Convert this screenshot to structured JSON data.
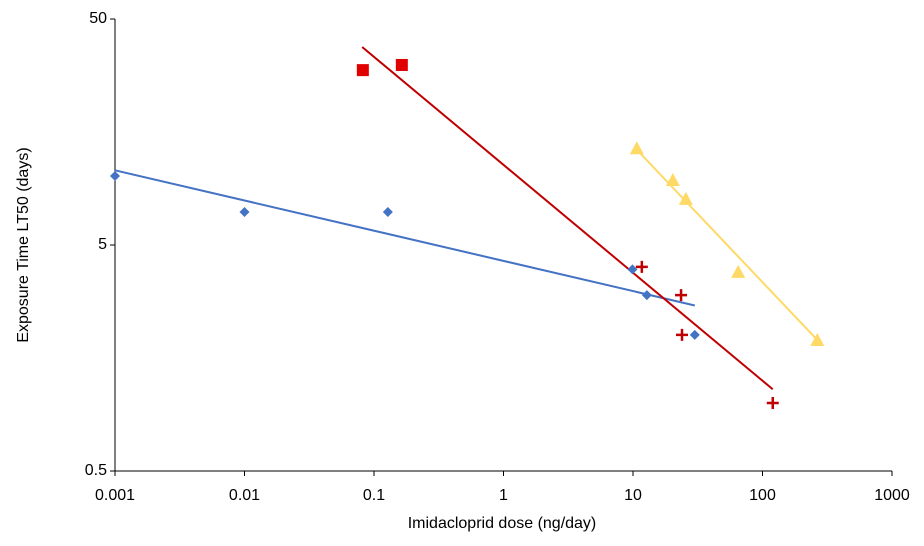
{
  "chart_data": {
    "type": "scatter",
    "x_label": "Imidacloprid dose (ng/day)",
    "y_label": "Exposure Time LT50 (days)",
    "xscale": "log",
    "yscale": "log",
    "xlim": [
      0.001,
      1000
    ],
    "xticks": [
      0.001,
      0.01,
      0.1,
      1,
      10,
      100,
      1000
    ],
    "ylim": [
      0.5,
      50
    ],
    "yticks": [
      0.5,
      5,
      50
    ],
    "grid": false,
    "series": [
      {
        "color": "#4472c4",
        "marker": "diamond",
        "x": [
          0.001,
          0.01,
          0.128,
          9.9,
          12.8,
          30
        ],
        "values": [
          10.1,
          7.0,
          7.0,
          3.9,
          3.0,
          2.0
        ]
      },
      {
        "color": "#e00000",
        "marker": "square",
        "x": [
          0.082,
          0.164
        ],
        "values": [
          29.7,
          31.3
        ]
      },
      {
        "color": "#c00000",
        "marker": "plus",
        "x": [
          11.7,
          23.5,
          23.9,
          120
        ],
        "values": [
          4.0,
          3.0,
          2.0,
          1.0
        ]
      },
      {
        "color": "#ffd966",
        "marker": "triangle",
        "x": [
          10.7,
          20.3,
          25.6,
          64.9,
          265
        ],
        "values": [
          13.4,
          9.7,
          8.0,
          3.8,
          1.9
        ]
      }
    ],
    "trendlines": [
      {
        "color": "#4472c4",
        "x": [
          0.001,
          30
        ],
        "values": [
          10.7,
          2.7
        ]
      },
      {
        "color": "#c00000",
        "x": [
          0.081,
          120
        ],
        "values": [
          37.6,
          1.15
        ]
      },
      {
        "color": "#ffd966",
        "x": [
          10.7,
          265
        ],
        "values": [
          13.2,
          1.9
        ]
      }
    ]
  }
}
